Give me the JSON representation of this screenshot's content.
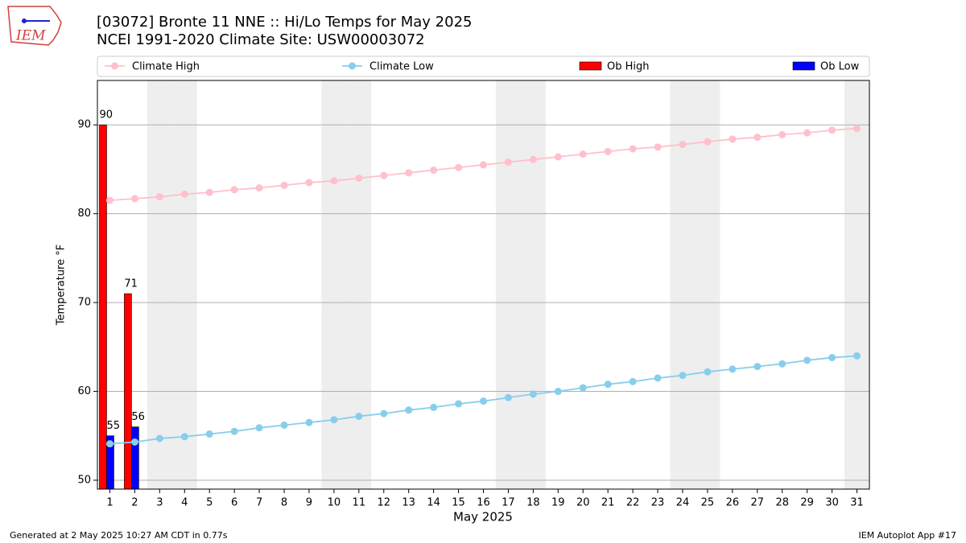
{
  "chart_data": {
    "type": "bar",
    "title": "[03072] Bronte 11 NNE :: Hi/Lo Temps for May 2025",
    "subtitle": "NCEI 1991-2020 Climate Site: USW00003072",
    "xlabel": "May 2025",
    "ylabel": "Temperature °F",
    "logo": "IEM",
    "footer_left": "Generated at 2 May 2025 10:27 AM CDT in 0.77s",
    "footer_right": "IEM Autoplot App #17",
    "categories": [
      1,
      2,
      3,
      4,
      5,
      6,
      7,
      8,
      9,
      10,
      11,
      12,
      13,
      14,
      15,
      16,
      17,
      18,
      19,
      20,
      21,
      22,
      23,
      24,
      25,
      26,
      27,
      28,
      29,
      30,
      31
    ],
    "shaded_days": [
      3,
      4,
      10,
      11,
      17,
      18,
      24,
      25,
      31
    ],
    "shade_color": "#eeeeee",
    "ylim": [
      49,
      95
    ],
    "yticks": [
      50,
      60,
      70,
      80,
      90
    ],
    "grid": true,
    "series": [
      {
        "name": "Climate High",
        "type": "line",
        "color": "#ffc0cb",
        "values": [
          81.5,
          81.7,
          81.9,
          82.2,
          82.4,
          82.7,
          82.9,
          83.2,
          83.5,
          83.7,
          84.0,
          84.3,
          84.6,
          84.9,
          85.2,
          85.5,
          85.8,
          86.1,
          86.4,
          86.7,
          87.0,
          87.3,
          87.5,
          87.8,
          88.1,
          88.4,
          88.6,
          88.9,
          89.1,
          89.4,
          89.6
        ]
      },
      {
        "name": "Climate Low",
        "type": "line",
        "color": "#87ceeb",
        "values": [
          54.1,
          54.3,
          54.7,
          54.9,
          55.2,
          55.5,
          55.9,
          56.2,
          56.5,
          56.8,
          57.2,
          57.5,
          57.9,
          58.2,
          58.6,
          58.9,
          59.3,
          59.7,
          60.0,
          60.4,
          60.8,
          61.1,
          61.5,
          61.8,
          62.2,
          62.5,
          62.8,
          63.1,
          63.5,
          63.8,
          64.0
        ]
      },
      {
        "name": "Ob High",
        "type": "bar",
        "color": "#ff0000",
        "values": [
          90,
          71,
          null,
          null,
          null,
          null,
          null,
          null,
          null,
          null,
          null,
          null,
          null,
          null,
          null,
          null,
          null,
          null,
          null,
          null,
          null,
          null,
          null,
          null,
          null,
          null,
          null,
          null,
          null,
          null,
          null
        ]
      },
      {
        "name": "Ob Low",
        "type": "bar",
        "color": "#0000ff",
        "values": [
          55,
          56,
          null,
          null,
          null,
          null,
          null,
          null,
          null,
          null,
          null,
          null,
          null,
          null,
          null,
          null,
          null,
          null,
          null,
          null,
          null,
          null,
          null,
          null,
          null,
          null,
          null,
          null,
          null,
          null,
          null
        ]
      }
    ]
  }
}
